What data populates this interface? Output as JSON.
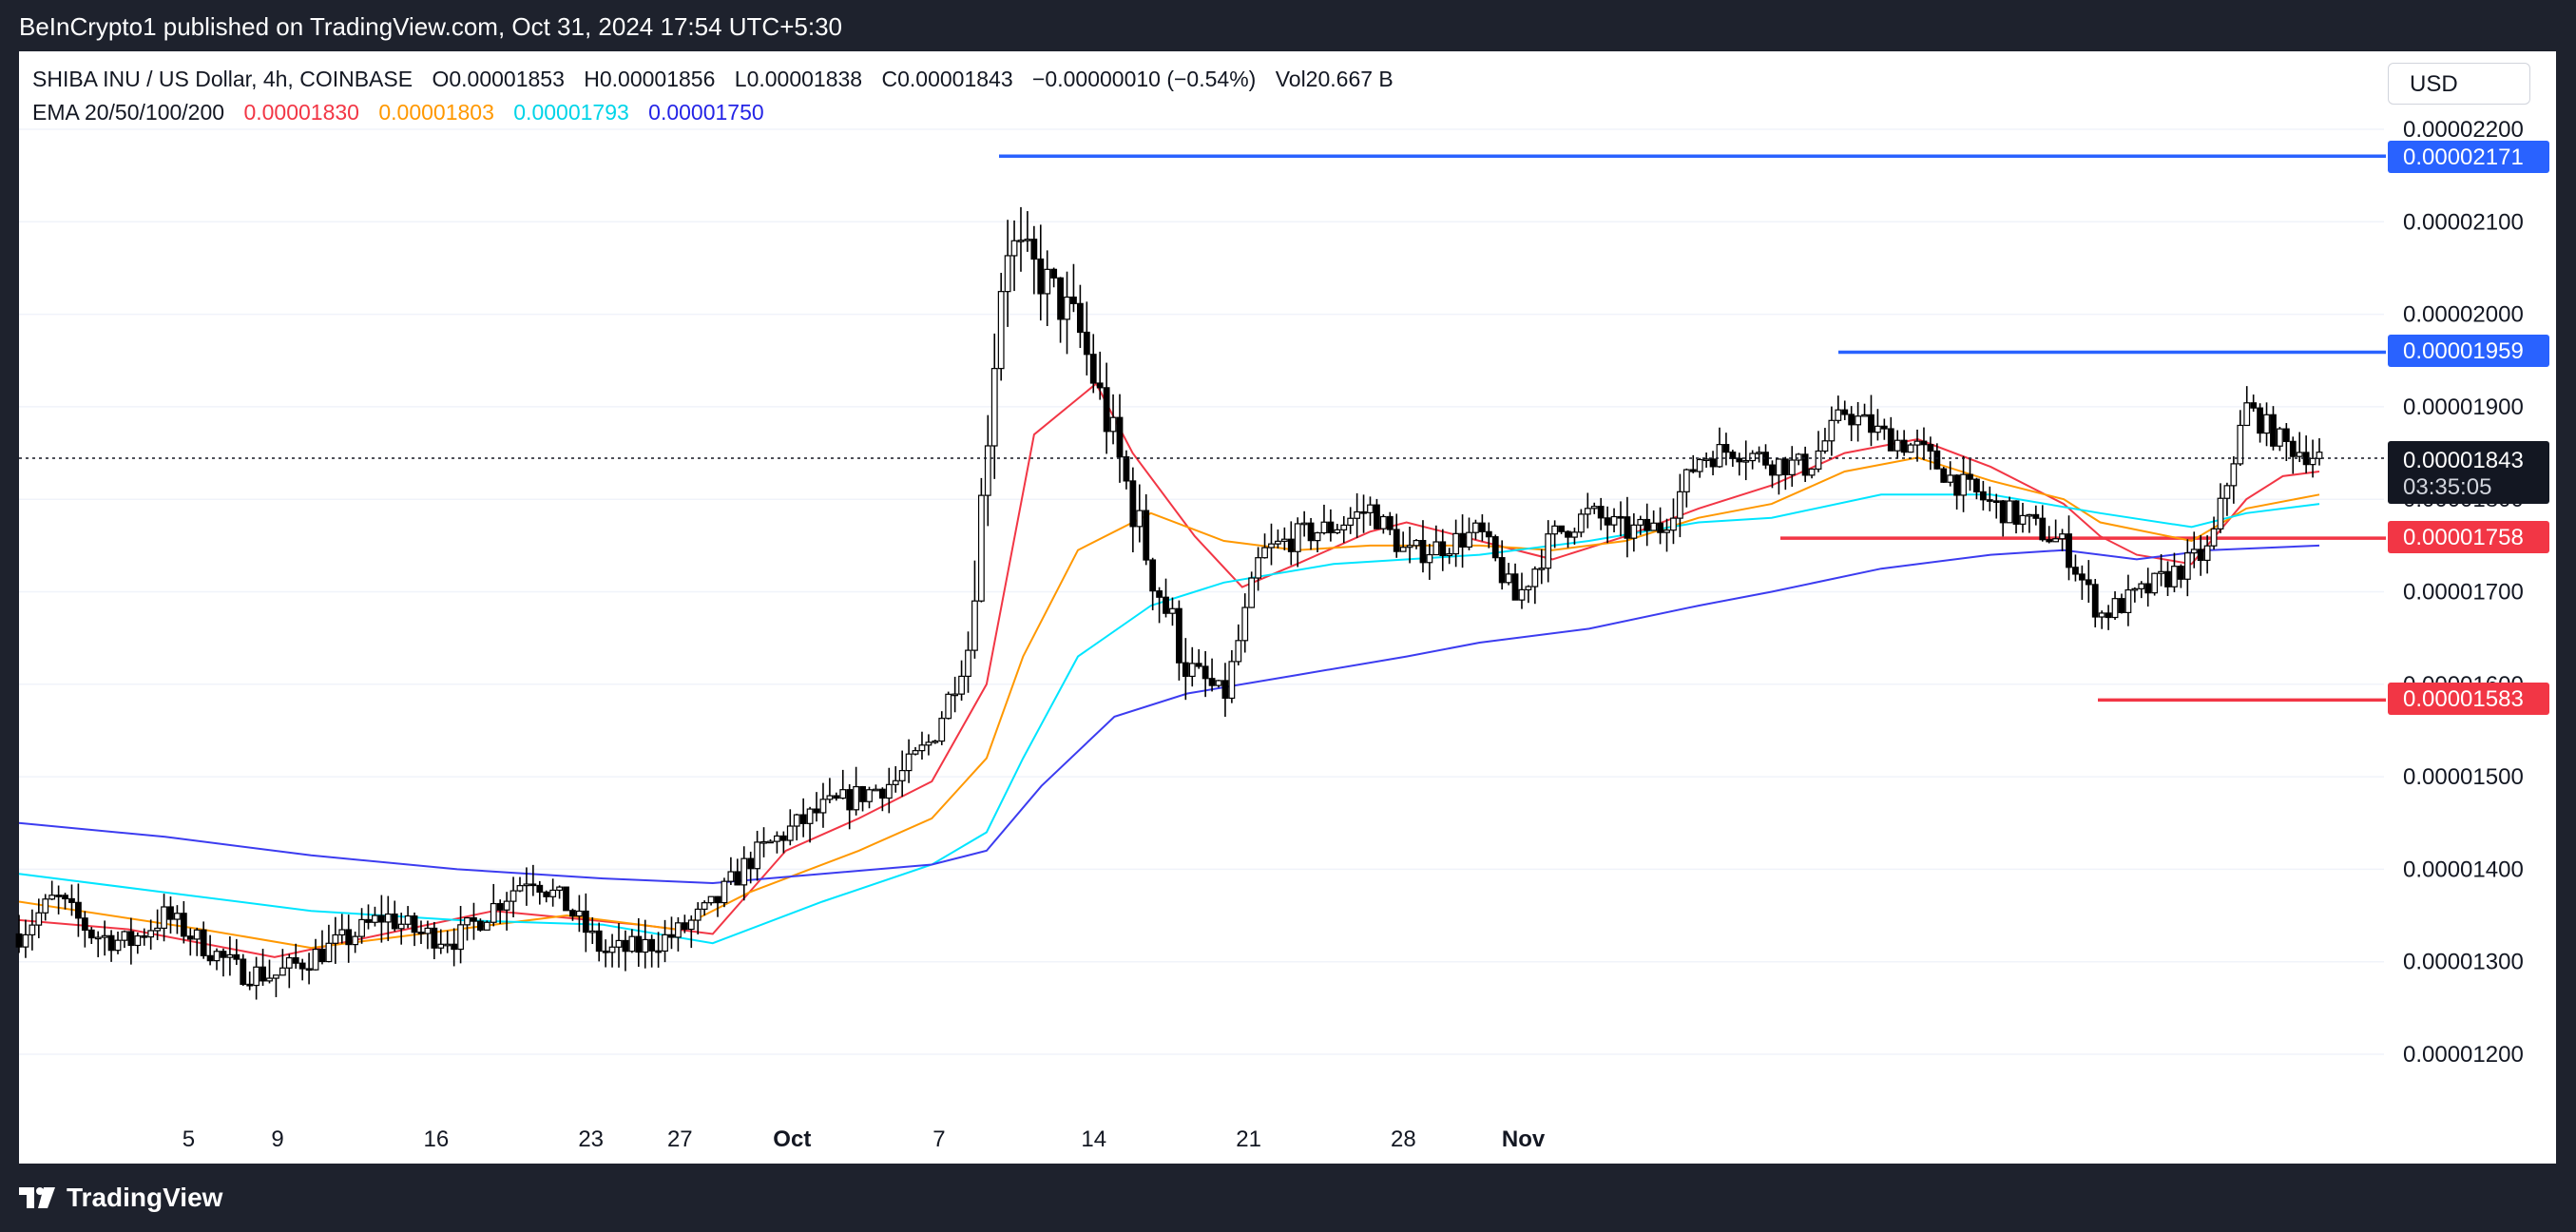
{
  "header": {
    "published": "BeInCrypto1 published on TradingView.com, Oct 31, 2024 17:54 UTC+5:30"
  },
  "legend": {
    "symbol": "SHIBA INU / US Dollar, 4h, COINBASE",
    "open": "O0.00001853",
    "high": "H0.00001856",
    "low": "L0.00001838",
    "close": "C0.00001843",
    "change": "−0.00000010 (−0.54%)",
    "volume": "Vol20.667 B",
    "ema_label": "EMA 20/50/100/200",
    "ema20": "0.00001830",
    "ema50": "0.00001803",
    "ema100": "0.00001793",
    "ema200": "0.00001750"
  },
  "currency_button": "USD",
  "footer": {
    "brand": "TradingView"
  },
  "colors": {
    "ema20": "#f23645",
    "ema50": "#ff9800",
    "ema100": "#00e5ff",
    "ema200": "#3c3cf0",
    "resistance": "#2962ff",
    "support": "#f23645",
    "candle": "#000000"
  },
  "chart_data": {
    "type": "candlestick",
    "title": "SHIBA INU / US Dollar, 4h, COINBASE",
    "ylim": [
      1.11e-05,
      2.23e-05
    ],
    "y_ticks": [
      "0.00002200",
      "0.00002100",
      "0.00002000",
      "0.00001900",
      "0.00001800",
      "0.00001700",
      "0.00001600",
      "0.00001500",
      "0.00001400",
      "0.00001300",
      "0.00001200"
    ],
    "x_ticks": [
      "5",
      "9",
      "16",
      "23",
      "27",
      "Oct",
      "7",
      "14",
      "21",
      "28",
      "Nov"
    ],
    "price_labels": {
      "r1": "0.00002171",
      "r2": "0.00001959",
      "current": "0.00001843",
      "countdown": "03:35:05",
      "s1": "0.00001758",
      "s2": "0.00001583"
    },
    "levels": [
      {
        "name": "resistance",
        "value": 2.171e-05,
        "from_day": 27.4
      },
      {
        "name": "resistance",
        "value": 1.959e-05,
        "from_day": 50.5
      },
      {
        "name": "support",
        "value": 1.758e-05,
        "from_day": 48.4
      },
      {
        "name": "support",
        "value": 1.583e-05,
        "from_day": 56.9
      }
    ],
    "close_path": [
      [
        0,
        13.3
      ],
      [
        1,
        13.7
      ],
      [
        2,
        13.3
      ],
      [
        3,
        13.2
      ],
      [
        4,
        13.5
      ],
      [
        5,
        13.2
      ],
      [
        6,
        12.9
      ],
      [
        7,
        12.85
      ],
      [
        8,
        13.05
      ],
      [
        9,
        13.25
      ],
      [
        10,
        13.5
      ],
      [
        11,
        13.3
      ],
      [
        12,
        13.25
      ],
      [
        13,
        13.6
      ],
      [
        14,
        13.95
      ],
      [
        15,
        13.6
      ],
      [
        16,
        13.1
      ],
      [
        17,
        13.15
      ],
      [
        18,
        13.3
      ],
      [
        19,
        13.6
      ],
      [
        20,
        14.1
      ],
      [
        21,
        14.4
      ],
      [
        22,
        14.65
      ],
      [
        23,
        14.8
      ],
      [
        24,
        14.95
      ],
      [
        25,
        15.4
      ],
      [
        26,
        16.4
      ],
      [
        27,
        20.8
      ],
      [
        28,
        20.4
      ],
      [
        29,
        19.85
      ],
      [
        30,
        18.6
      ],
      [
        31,
        17.25
      ],
      [
        32,
        16.2
      ],
      [
        33,
        15.85
      ],
      [
        34,
        17.4
      ],
      [
        35,
        17.6
      ],
      [
        36,
        17.7
      ],
      [
        37,
        17.9
      ],
      [
        38,
        17.4
      ],
      [
        39,
        17.5
      ],
      [
        40,
        17.65
      ],
      [
        41,
        16.9
      ],
      [
        42,
        17.6
      ],
      [
        43,
        17.85
      ],
      [
        44,
        17.65
      ],
      [
        45,
        17.7
      ],
      [
        46,
        18.45
      ],
      [
        47,
        18.55
      ],
      [
        48,
        18.4
      ],
      [
        49,
        18.35
      ],
      [
        50,
        18.95
      ],
      [
        51,
        18.7
      ],
      [
        52,
        18.55
      ],
      [
        53,
        18.2
      ],
      [
        54,
        17.95
      ],
      [
        55,
        17.75
      ],
      [
        56,
        17.5
      ],
      [
        57,
        16.75
      ],
      [
        58,
        16.95
      ],
      [
        59,
        17.2
      ],
      [
        60,
        17.45
      ],
      [
        61,
        19.0
      ],
      [
        62,
        18.6
      ],
      [
        63,
        18.45
      ]
    ],
    "ema": {
      "ema20": [
        [
          0,
          13.45
        ],
        [
          3,
          13.35
        ],
        [
          7,
          13.05
        ],
        [
          10,
          13.3
        ],
        [
          13,
          13.55
        ],
        [
          17,
          13.4
        ],
        [
          19,
          13.3
        ],
        [
          21,
          14.2
        ],
        [
          23,
          14.55
        ],
        [
          25,
          14.95
        ],
        [
          26.5,
          16.0
        ],
        [
          27.8,
          18.7
        ],
        [
          29.5,
          19.25
        ],
        [
          30.5,
          18.5
        ],
        [
          32.2,
          17.6
        ],
        [
          33.5,
          17.05
        ],
        [
          35,
          17.3
        ],
        [
          37,
          17.65
        ],
        [
          38,
          17.75
        ],
        [
          40,
          17.55
        ],
        [
          42,
          17.35
        ],
        [
          44,
          17.6
        ],
        [
          46,
          17.9
        ],
        [
          48,
          18.15
        ],
        [
          50,
          18.5
        ],
        [
          52,
          18.65
        ],
        [
          54,
          18.35
        ],
        [
          56,
          17.95
        ],
        [
          57,
          17.6
        ],
        [
          58,
          17.4
        ],
        [
          59.5,
          17.3
        ],
        [
          61,
          18.0
        ],
        [
          62,
          18.25
        ],
        [
          63,
          18.3
        ]
      ],
      "ema50": [
        [
          0,
          13.65
        ],
        [
          5,
          13.35
        ],
        [
          8,
          13.15
        ],
        [
          11,
          13.3
        ],
        [
          15,
          13.5
        ],
        [
          18,
          13.35
        ],
        [
          20,
          13.75
        ],
        [
          23,
          14.2
        ],
        [
          25,
          14.55
        ],
        [
          26.5,
          15.2
        ],
        [
          27.5,
          16.3
        ],
        [
          29,
          17.45
        ],
        [
          31,
          17.85
        ],
        [
          33,
          17.55
        ],
        [
          35,
          17.45
        ],
        [
          37,
          17.5
        ],
        [
          40,
          17.5
        ],
        [
          42,
          17.45
        ],
        [
          44,
          17.55
        ],
        [
          46,
          17.8
        ],
        [
          48,
          17.95
        ],
        [
          50,
          18.3
        ],
        [
          52,
          18.45
        ],
        [
          54,
          18.2
        ],
        [
          56,
          18.0
        ],
        [
          57,
          17.75
        ],
        [
          59.5,
          17.55
        ],
        [
          61,
          17.9
        ],
        [
          63,
          18.05
        ]
      ],
      "ema100": [
        [
          0,
          13.95
        ],
        [
          4,
          13.75
        ],
        [
          8,
          13.55
        ],
        [
          12,
          13.45
        ],
        [
          16,
          13.4
        ],
        [
          19,
          13.2
        ],
        [
          22,
          13.65
        ],
        [
          25,
          14.05
        ],
        [
          26.5,
          14.4
        ],
        [
          27.5,
          15.2
        ],
        [
          29,
          16.3
        ],
        [
          31,
          16.85
        ],
        [
          33,
          17.1
        ],
        [
          36,
          17.3
        ],
        [
          40,
          17.4
        ],
        [
          43,
          17.55
        ],
        [
          46,
          17.75
        ],
        [
          48,
          17.8
        ],
        [
          51,
          18.05
        ],
        [
          54,
          18.05
        ],
        [
          57,
          17.85
        ],
        [
          59.5,
          17.7
        ],
        [
          61,
          17.85
        ],
        [
          63,
          17.95
        ]
      ],
      "ema200": [
        [
          0,
          14.5
        ],
        [
          4,
          14.35
        ],
        [
          8,
          14.15
        ],
        [
          12,
          14.0
        ],
        [
          16,
          13.9
        ],
        [
          19,
          13.85
        ],
        [
          22,
          13.95
        ],
        [
          25,
          14.05
        ],
        [
          26.5,
          14.2
        ],
        [
          28,
          14.9
        ],
        [
          30,
          15.65
        ],
        [
          32,
          15.9
        ],
        [
          35,
          16.1
        ],
        [
          38,
          16.3
        ],
        [
          40,
          16.45
        ],
        [
          43,
          16.6
        ],
        [
          46,
          16.85
        ],
        [
          48,
          17.0
        ],
        [
          51,
          17.25
        ],
        [
          54,
          17.4
        ],
        [
          56,
          17.45
        ],
        [
          58,
          17.35
        ],
        [
          60,
          17.45
        ],
        [
          63,
          17.5
        ]
      ]
    }
  }
}
